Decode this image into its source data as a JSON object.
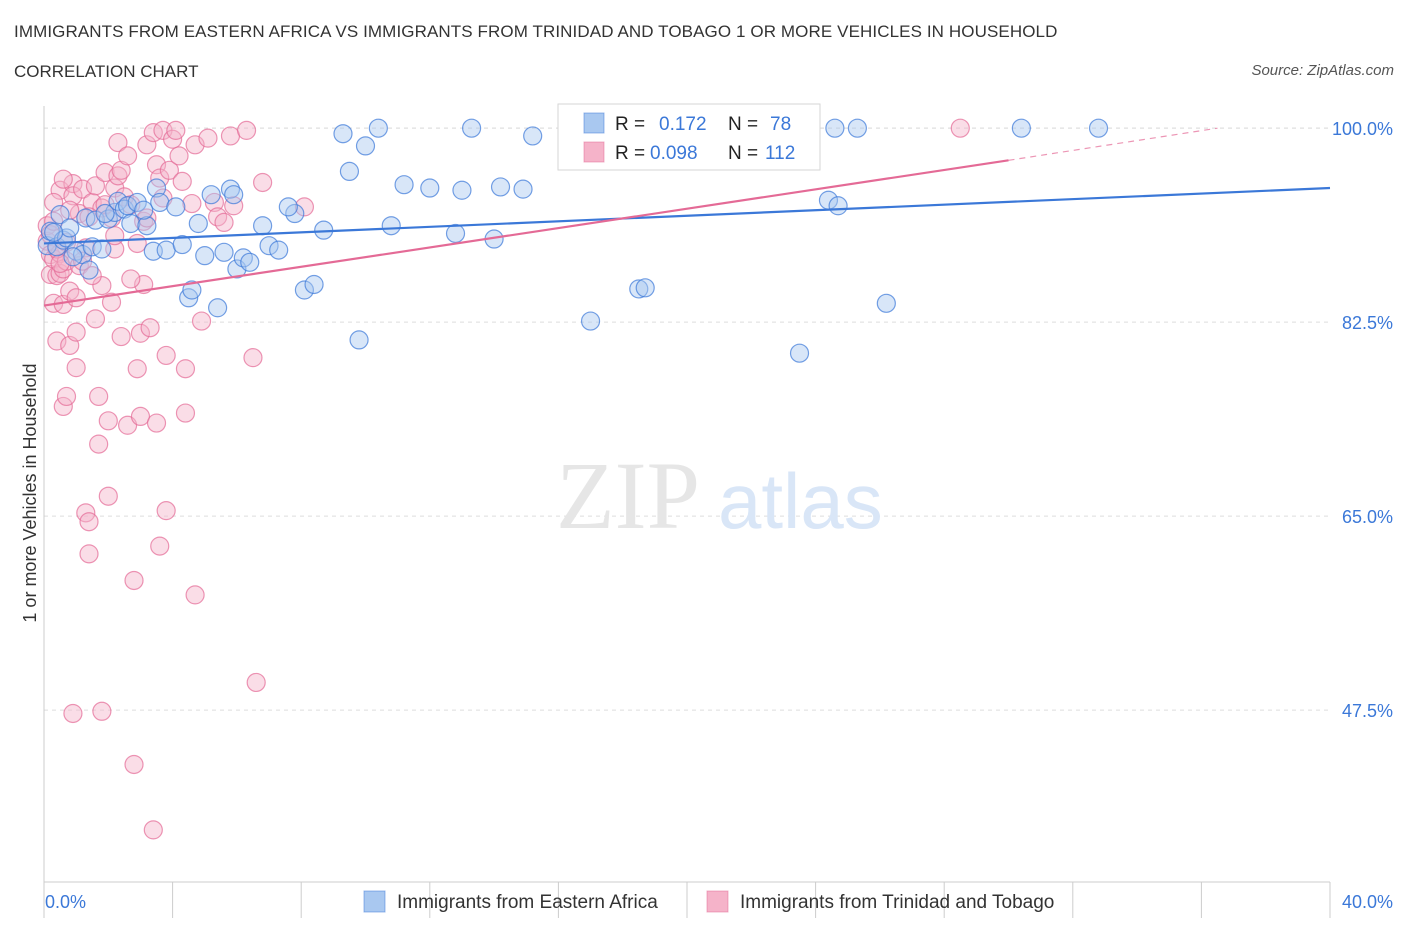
{
  "title": "IMMIGRANTS FROM EASTERN AFRICA VS IMMIGRANTS FROM TRINIDAD AND TOBAGO 1 OR MORE VEHICLES IN HOUSEHOLD",
  "subtitle": "CORRELATION CHART",
  "source": "Source: ZipAtlas.com",
  "colors": {
    "blue": "#3b78d8",
    "blue_fill": "#a9c8f0",
    "pink": "#e46a96",
    "pink_fill": "#f5b3c9",
    "grid": "#dddddd",
    "axis_text": "#3b78d8"
  },
  "chart_data": {
    "type": "scatter",
    "title": "IMMIGRANTS FROM EASTERN AFRICA VS IMMIGRANTS FROM TRINIDAD AND TOBAGO 1 OR MORE VEHICLES IN HOUSEHOLD",
    "xlabel": "",
    "ylabel": "1 or more Vehicles in Household",
    "xlim": [
      0,
      40
    ],
    "ylim": [
      32,
      102
    ],
    "x_tick_labels": [
      "0.0%",
      "40.0%"
    ],
    "y_ticks": [
      47.5,
      65.0,
      82.5,
      100.0
    ],
    "y_tick_labels": [
      "47.5%",
      "65.0%",
      "82.5%",
      "100.0%"
    ],
    "legend": {
      "items": [
        {
          "r_label": "R =",
          "r": "0.172",
          "n_label": "N =",
          "n": "78"
        },
        {
          "r_label": "R =",
          "r": "0.098",
          "n_label": "N =",
          "n": "112"
        }
      ]
    },
    "series": [
      {
        "name": "Immigrants from Eastern Africa",
        "color": "#3b78d8",
        "trend": {
          "x0": 0,
          "y0": 89.6,
          "x1": 40,
          "y1": 94.6
        },
        "points": [
          [
            0.1,
            89.4
          ],
          [
            0.2,
            90.7
          ],
          [
            0.4,
            89.3
          ],
          [
            0.5,
            92.2
          ],
          [
            0.6,
            89.9
          ],
          [
            0.7,
            90.1
          ],
          [
            0.8,
            91.0
          ],
          [
            1.0,
            88.9
          ],
          [
            1.2,
            88.6
          ],
          [
            1.3,
            91.9
          ],
          [
            1.4,
            87.2
          ],
          [
            1.5,
            89.3
          ],
          [
            1.6,
            91.7
          ],
          [
            1.8,
            89.1
          ],
          [
            2.0,
            91.8
          ],
          [
            2.2,
            92.4
          ],
          [
            2.3,
            93.4
          ],
          [
            2.5,
            92.7
          ],
          [
            2.6,
            93.0
          ],
          [
            2.7,
            91.4
          ],
          [
            2.9,
            93.3
          ],
          [
            3.2,
            91.2
          ],
          [
            3.4,
            88.9
          ],
          [
            3.5,
            94.6
          ],
          [
            3.6,
            93.3
          ],
          [
            3.8,
            89.0
          ],
          [
            4.1,
            92.9
          ],
          [
            4.3,
            89.5
          ],
          [
            4.5,
            84.7
          ],
          [
            4.6,
            85.4
          ],
          [
            4.8,
            91.4
          ],
          [
            5.0,
            88.5
          ],
          [
            5.2,
            94.0
          ],
          [
            5.4,
            83.8
          ],
          [
            5.6,
            88.8
          ],
          [
            5.8,
            94.5
          ],
          [
            6.0,
            87.3
          ],
          [
            6.2,
            88.3
          ],
          [
            6.4,
            87.9
          ],
          [
            6.8,
            91.2
          ],
          [
            7.0,
            89.4
          ],
          [
            7.3,
            89.0
          ],
          [
            7.8,
            92.3
          ],
          [
            8.1,
            85.4
          ],
          [
            8.4,
            85.9
          ],
          [
            8.7,
            90.8
          ],
          [
            9.3,
            99.5
          ],
          [
            9.5,
            96.1
          ],
          [
            9.8,
            80.9
          ],
          [
            10.0,
            98.4
          ],
          [
            10.4,
            100.0
          ],
          [
            10.8,
            91.2
          ],
          [
            11.2,
            94.9
          ],
          [
            12.0,
            94.6
          ],
          [
            12.8,
            90.5
          ],
          [
            13.0,
            94.4
          ],
          [
            13.3,
            100.0
          ],
          [
            14.0,
            90.0
          ],
          [
            14.2,
            94.7
          ],
          [
            14.9,
            94.5
          ],
          [
            15.2,
            99.3
          ],
          [
            17.0,
            82.6
          ],
          [
            18.5,
            85.5
          ],
          [
            18.7,
            85.6
          ],
          [
            23.5,
            79.7
          ],
          [
            24.4,
            93.5
          ],
          [
            24.7,
            93.0
          ],
          [
            25.3,
            100.0
          ],
          [
            24.6,
            100.0
          ],
          [
            26.2,
            84.2
          ],
          [
            30.4,
            100.0
          ],
          [
            32.8,
            100.0
          ],
          [
            5.9,
            94.0
          ],
          [
            3.1,
            92.6
          ],
          [
            1.9,
            92.3
          ],
          [
            0.3,
            90.6
          ],
          [
            0.9,
            88.4
          ],
          [
            7.6,
            92.9
          ]
        ]
      },
      {
        "name": "Immigrants from Trinidad and Tobago",
        "color": "#e46a96",
        "trend": {
          "x0": 0,
          "y0": 84.0,
          "x1": 30,
          "y1": 97.1
        },
        "trend_dashed_to": {
          "x": 36.5,
          "y": 100.0
        },
        "points": [
          [
            0.1,
            89.8
          ],
          [
            0.1,
            91.2
          ],
          [
            0.2,
            86.8
          ],
          [
            0.2,
            88.6
          ],
          [
            0.2,
            90.4
          ],
          [
            0.3,
            84.2
          ],
          [
            0.3,
            88.2
          ],
          [
            0.3,
            91.6
          ],
          [
            0.4,
            80.8
          ],
          [
            0.4,
            86.7
          ],
          [
            0.5,
            88.7
          ],
          [
            0.5,
            94.4
          ],
          [
            0.5,
            86.9
          ],
          [
            0.6,
            84.1
          ],
          [
            0.6,
            87.3
          ],
          [
            0.6,
            74.9
          ],
          [
            0.7,
            75.8
          ],
          [
            0.7,
            88.0
          ],
          [
            0.7,
            89.7
          ],
          [
            0.8,
            80.4
          ],
          [
            0.8,
            85.3
          ],
          [
            0.9,
            95.0
          ],
          [
            0.9,
            93.9
          ],
          [
            1.0,
            78.4
          ],
          [
            1.0,
            84.7
          ],
          [
            1.1,
            87.6
          ],
          [
            1.1,
            92.3
          ],
          [
            1.2,
            94.5
          ],
          [
            1.3,
            89.2
          ],
          [
            1.3,
            65.3
          ],
          [
            1.4,
            61.6
          ],
          [
            1.4,
            64.5
          ],
          [
            1.5,
            93.3
          ],
          [
            1.6,
            94.8
          ],
          [
            1.7,
            75.8
          ],
          [
            1.7,
            71.5
          ],
          [
            1.8,
            92.8
          ],
          [
            1.8,
            85.8
          ],
          [
            1.9,
            96.0
          ],
          [
            2.0,
            73.6
          ],
          [
            2.0,
            66.8
          ],
          [
            2.1,
            91.9
          ],
          [
            2.1,
            84.3
          ],
          [
            2.2,
            89.1
          ],
          [
            2.2,
            94.6
          ],
          [
            2.3,
            98.7
          ],
          [
            2.3,
            95.7
          ],
          [
            2.4,
            96.2
          ],
          [
            2.5,
            93.8
          ],
          [
            2.6,
            97.5
          ],
          [
            2.6,
            73.2
          ],
          [
            2.7,
            93.1
          ],
          [
            2.8,
            59.2
          ],
          [
            2.8,
            42.6
          ],
          [
            2.9,
            78.3
          ],
          [
            3.0,
            81.5
          ],
          [
            3.0,
            74.0
          ],
          [
            3.1,
            85.9
          ],
          [
            3.1,
            91.6
          ],
          [
            3.2,
            98.5
          ],
          [
            3.2,
            91.9
          ],
          [
            3.4,
            99.6
          ],
          [
            3.4,
            36.7
          ],
          [
            3.5,
            96.7
          ],
          [
            3.5,
            73.4
          ],
          [
            3.6,
            62.3
          ],
          [
            3.6,
            95.5
          ],
          [
            3.7,
            99.8
          ],
          [
            3.8,
            79.5
          ],
          [
            3.8,
            65.5
          ],
          [
            3.9,
            96.2
          ],
          [
            4.0,
            99.0
          ],
          [
            4.1,
            99.8
          ],
          [
            4.2,
            97.5
          ],
          [
            4.3,
            95.2
          ],
          [
            4.4,
            78.3
          ],
          [
            4.4,
            74.3
          ],
          [
            4.6,
            93.2
          ],
          [
            4.7,
            57.9
          ],
          [
            4.7,
            98.5
          ],
          [
            5.1,
            99.1
          ],
          [
            5.3,
            93.3
          ],
          [
            5.4,
            92.0
          ],
          [
            5.6,
            91.5
          ],
          [
            5.8,
            99.3
          ],
          [
            5.9,
            93.0
          ],
          [
            6.3,
            99.8
          ],
          [
            6.6,
            50.0
          ],
          [
            6.8,
            95.1
          ],
          [
            8.1,
            92.9
          ],
          [
            0.9,
            47.2
          ],
          [
            1.8,
            47.4
          ],
          [
            1.0,
            81.6
          ],
          [
            1.5,
            86.7
          ],
          [
            2.2,
            90.3
          ],
          [
            0.4,
            89.1
          ],
          [
            0.6,
            95.4
          ],
          [
            0.8,
            92.6
          ],
          [
            1.2,
            88.0
          ],
          [
            1.6,
            82.8
          ],
          [
            2.4,
            81.2
          ],
          [
            2.7,
            86.4
          ],
          [
            3.3,
            82.0
          ],
          [
            0.3,
            93.3
          ],
          [
            0.5,
            87.8
          ],
          [
            1.9,
            93.1
          ],
          [
            2.9,
            89.6
          ],
          [
            3.7,
            93.7
          ],
          [
            4.9,
            82.6
          ],
          [
            6.5,
            79.3
          ],
          [
            28.5,
            100.0
          ],
          [
            1.4,
            92.0
          ]
        ]
      }
    ],
    "watermark": "ZIPatlas"
  },
  "bottom_legend": [
    {
      "label": "Immigrants from Eastern Africa"
    },
    {
      "label": "Immigrants from Trinidad and Tobago"
    }
  ]
}
